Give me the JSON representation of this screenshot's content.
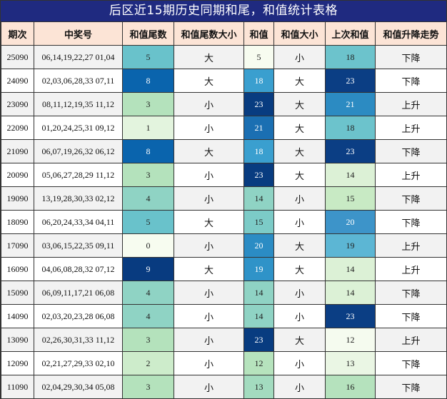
{
  "title": "后区近15期历史同期和尾，和值统计表格",
  "headers": [
    "期次",
    "中奖号",
    "和值尾数",
    "和值尾数大小",
    "和值",
    "和值大小",
    "上次和值",
    "和值升降走势"
  ],
  "rows": [
    {
      "period": "25090",
      "draw": "06,14,19,22,27 01,04",
      "tail": "5",
      "tail_size": "大",
      "sum": "5",
      "sum_size": "小",
      "prev_sum": "18",
      "trend": "下降",
      "tail_color": "#69c2cb",
      "sum_color": "#f7fcf0",
      "prev_color": "#6cc3cc"
    },
    {
      "period": "24090",
      "draw": "02,03,06,28,33 07,11",
      "tail": "8",
      "tail_size": "大",
      "sum": "18",
      "sum_size": "大",
      "prev_sum": "23",
      "trend": "下降",
      "tail_color": "#0a64ad",
      "sum_color": "#3a9fcf",
      "prev_color": "#0b3e84"
    },
    {
      "period": "23090",
      "draw": "08,11,12,19,35 11,12",
      "tail": "3",
      "tail_size": "小",
      "sum": "23",
      "sum_size": "大",
      "prev_sum": "21",
      "trend": "上升",
      "tail_color": "#b4e2bc",
      "sum_color": "#083c80",
      "prev_color": "#2c8bc2"
    },
    {
      "period": "22090",
      "draw": "01,20,24,25,31 09,12",
      "tail": "1",
      "tail_size": "小",
      "sum": "21",
      "sum_size": "大",
      "prev_sum": "18",
      "trend": "上升",
      "tail_color": "#e3f4de",
      "sum_color": "#1b6fb2",
      "prev_color": "#6cc3cc"
    },
    {
      "period": "21090",
      "draw": "06,07,19,26,32 06,12",
      "tail": "8",
      "tail_size": "大",
      "sum": "18",
      "sum_size": "大",
      "prev_sum": "23",
      "trend": "下降",
      "tail_color": "#0a64ad",
      "sum_color": "#3a9fcf",
      "prev_color": "#0b3e84"
    },
    {
      "period": "20090",
      "draw": "05,06,27,28,29 11,12",
      "tail": "3",
      "tail_size": "小",
      "sum": "23",
      "sum_size": "大",
      "prev_sum": "14",
      "trend": "上升",
      "tail_color": "#b4e2bc",
      "sum_color": "#083c80",
      "prev_color": "#dcf1d6"
    },
    {
      "period": "19090",
      "draw": "13,19,28,30,33 02,12",
      "tail": "4",
      "tail_size": "小",
      "sum": "14",
      "sum_size": "小",
      "prev_sum": "15",
      "trend": "下降",
      "tail_color": "#8fd3c4",
      "sum_color": "#8fd3c4",
      "prev_color": "#c8eac4"
    },
    {
      "period": "18090",
      "draw": "06,20,24,33,34 04,11",
      "tail": "5",
      "tail_size": "大",
      "sum": "15",
      "sum_size": "小",
      "prev_sum": "20",
      "trend": "下降",
      "tail_color": "#69c2cb",
      "sum_color": "#7ccbc7",
      "prev_color": "#3d94c9"
    },
    {
      "period": "17090",
      "draw": "03,06,15,22,35 09,11",
      "tail": "0",
      "tail_size": "小",
      "sum": "20",
      "sum_size": "大",
      "prev_sum": "19",
      "trend": "上升",
      "tail_color": "#f7fcf0",
      "sum_color": "#2b8cc4",
      "prev_color": "#5cb6d4"
    },
    {
      "period": "16090",
      "draw": "04,06,08,28,32 07,12",
      "tail": "9",
      "tail_size": "大",
      "sum": "19",
      "sum_size": "大",
      "prev_sum": "14",
      "trend": "上升",
      "tail_color": "#083b80",
      "sum_color": "#2f93c8",
      "prev_color": "#dcf1d6"
    },
    {
      "period": "15090",
      "draw": "06,09,11,17,21 06,08",
      "tail": "4",
      "tail_size": "小",
      "sum": "14",
      "sum_size": "小",
      "prev_sum": "14",
      "trend": "下降",
      "tail_color": "#8fd3c4",
      "sum_color": "#8fd3c4",
      "prev_color": "#dcf1d6"
    },
    {
      "period": "14090",
      "draw": "02,03,20,23,28 06,08",
      "tail": "4",
      "tail_size": "小",
      "sum": "14",
      "sum_size": "小",
      "prev_sum": "23",
      "trend": "下降",
      "tail_color": "#8fd3c4",
      "sum_color": "#8fd3c4",
      "prev_color": "#0b3e84"
    },
    {
      "period": "13090",
      "draw": "02,26,30,31,33 11,12",
      "tail": "3",
      "tail_size": "小",
      "sum": "23",
      "sum_size": "大",
      "prev_sum": "12",
      "trend": "上升",
      "tail_color": "#b4e2bc",
      "sum_color": "#083c80",
      "prev_color": "#f5fbef"
    },
    {
      "period": "12090",
      "draw": "02,21,27,29,33 02,10",
      "tail": "2",
      "tail_size": "小",
      "sum": "12",
      "sum_size": "小",
      "prev_sum": "13",
      "trend": "下降",
      "tail_color": "#cdeccb",
      "sum_color": "#b6e3bd",
      "prev_color": "#eaf6e4"
    },
    {
      "period": "11090",
      "draw": "02,04,29,30,34 05,08",
      "tail": "3",
      "tail_size": "小",
      "sum": "13",
      "sum_size": "小",
      "prev_sum": "16",
      "trend": "下降",
      "tail_color": "#b4e2bc",
      "sum_color": "#a3dbbf",
      "prev_color": "#b5e2bd"
    }
  ]
}
